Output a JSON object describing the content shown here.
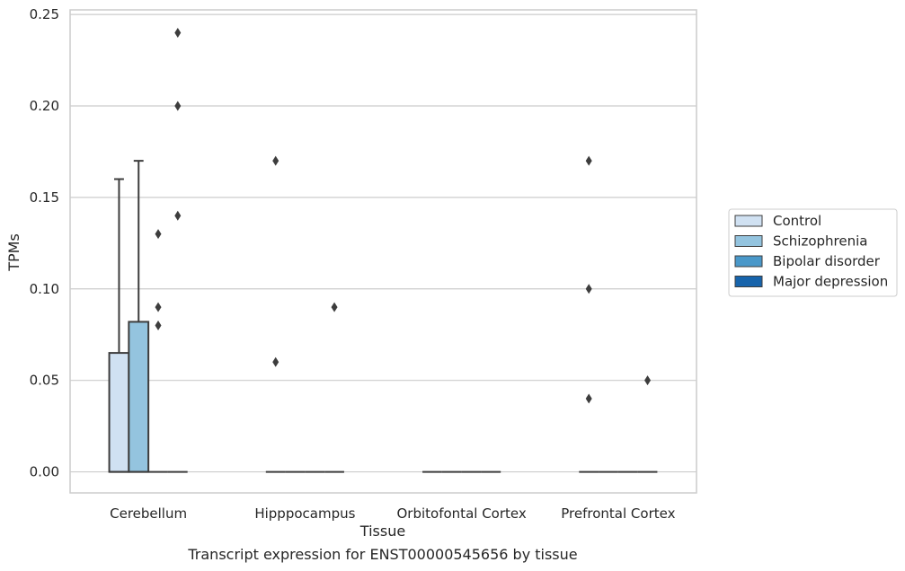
{
  "chart_data": {
    "type": "box",
    "title": "Transcript expression for ENST00000545656 by tissue",
    "xlabel": "Tissue",
    "ylabel": "TPMs",
    "ylim": [
      -0.0115,
      0.2525
    ],
    "yticks": [
      0.0,
      0.05,
      0.1,
      0.15,
      0.2,
      0.25
    ],
    "ytick_labels": [
      "0.00",
      "0.05",
      "0.10",
      "0.15",
      "0.20",
      "0.25"
    ],
    "grid": "horizontal",
    "legend_position": "right",
    "categories": [
      "Cerebellum",
      "Hipppocampus",
      "Orbitofontal Cortex",
      "Prefrontal Cortex"
    ],
    "series": [
      {
        "name": "Control",
        "color": "#d0e1f2",
        "boxes": [
          {
            "q1": 0.0,
            "median": 0.0,
            "q3": 0.065,
            "whisker_low": 0.0,
            "whisker_high": 0.16,
            "outliers": []
          },
          {
            "q1": 0.0,
            "median": 0.0,
            "q3": 0.0,
            "whisker_low": 0.0,
            "whisker_high": 0.0,
            "outliers": [
              0.06,
              0.17
            ]
          },
          {
            "q1": 0.0,
            "median": 0.0,
            "q3": 0.0,
            "whisker_low": 0.0,
            "whisker_high": 0.0,
            "outliers": []
          },
          {
            "q1": 0.0,
            "median": 0.0,
            "q3": 0.0,
            "whisker_low": 0.0,
            "whisker_high": 0.0,
            "outliers": [
              0.04,
              0.1,
              0.17
            ]
          }
        ]
      },
      {
        "name": "Schizophrenia",
        "color": "#94c4df",
        "boxes": [
          {
            "q1": 0.0,
            "median": 0.0,
            "q3": 0.082,
            "whisker_low": 0.0,
            "whisker_high": 0.17,
            "outliers": []
          },
          {
            "q1": 0.0,
            "median": 0.0,
            "q3": 0.0,
            "whisker_low": 0.0,
            "whisker_high": 0.0,
            "outliers": []
          },
          {
            "q1": 0.0,
            "median": 0.0,
            "q3": 0.0,
            "whisker_low": 0.0,
            "whisker_high": 0.0,
            "outliers": []
          },
          {
            "q1": 0.0,
            "median": 0.0,
            "q3": 0.0,
            "whisker_low": 0.0,
            "whisker_high": 0.0,
            "outliers": []
          }
        ]
      },
      {
        "name": "Bipolar disorder",
        "color": "#4a98c9",
        "boxes": [
          {
            "q1": 0.0,
            "median": 0.0,
            "q3": 0.0,
            "whisker_low": 0.0,
            "whisker_high": 0.0,
            "outliers": [
              0.08,
              0.09,
              0.13
            ]
          },
          {
            "q1": 0.0,
            "median": 0.0,
            "q3": 0.0,
            "whisker_low": 0.0,
            "whisker_high": 0.0,
            "outliers": []
          },
          {
            "q1": 0.0,
            "median": 0.0,
            "q3": 0.0,
            "whisker_low": 0.0,
            "whisker_high": 0.0,
            "outliers": []
          },
          {
            "q1": 0.0,
            "median": 0.0,
            "q3": 0.0,
            "whisker_low": 0.0,
            "whisker_high": 0.0,
            "outliers": []
          }
        ]
      },
      {
        "name": "Major depression",
        "color": "#1764ab",
        "boxes": [
          {
            "q1": 0.0,
            "median": 0.0,
            "q3": 0.0,
            "whisker_low": 0.0,
            "whisker_high": 0.0,
            "outliers": [
              0.14,
              0.2,
              0.24
            ]
          },
          {
            "q1": 0.0,
            "median": 0.0,
            "q3": 0.0,
            "whisker_low": 0.0,
            "whisker_high": 0.0,
            "outliers": [
              0.09
            ]
          },
          {
            "q1": 0.0,
            "median": 0.0,
            "q3": 0.0,
            "whisker_low": 0.0,
            "whisker_high": 0.0,
            "outliers": []
          },
          {
            "q1": 0.0,
            "median": 0.0,
            "q3": 0.0,
            "whisker_low": 0.0,
            "whisker_high": 0.0,
            "outliers": [
              0.05
            ]
          }
        ]
      }
    ],
    "colors": {
      "grid": "#cccccc",
      "frame": "#cccccc",
      "box_edge": "#3d3d3d",
      "text": "#262626"
    }
  }
}
